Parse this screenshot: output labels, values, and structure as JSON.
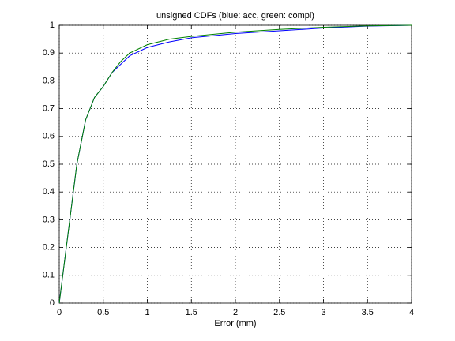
{
  "chart_data": {
    "type": "line",
    "title": "unsigned CDFs (blue: acc, green: compl)",
    "x_label": "Error (mm)",
    "x": [
      0,
      0.1,
      0.2,
      0.3,
      0.4,
      0.5,
      0.6,
      0.7,
      0.8,
      1,
      1.25,
      1.5,
      2,
      2.5,
      3,
      3.5,
      4
    ],
    "series": [
      {
        "color": "#0000ff",
        "values": [
          0,
          0.25,
          0.5,
          0.66,
          0.74,
          0.78,
          0.83,
          0.86,
          0.89,
          0.92,
          0.94,
          0.955,
          0.97,
          0.98,
          0.99,
          0.997,
          1
        ]
      },
      {
        "color": "#008000",
        "values": [
          0,
          0.25,
          0.5,
          0.66,
          0.74,
          0.78,
          0.83,
          0.87,
          0.9,
          0.93,
          0.95,
          0.96,
          0.975,
          0.985,
          0.993,
          0.998,
          1
        ]
      }
    ],
    "xlim": [
      0,
      4
    ],
    "xticks": [
      0,
      0.5,
      1,
      1.5,
      2,
      2.5,
      3,
      3.5,
      4
    ],
    "ylim": [
      0,
      1
    ],
    "yticks": [
      0,
      0.1,
      0.2,
      0.3,
      0.4,
      0.5,
      0.6,
      0.7,
      0.8,
      0.9,
      1
    ],
    "grid": true
  }
}
